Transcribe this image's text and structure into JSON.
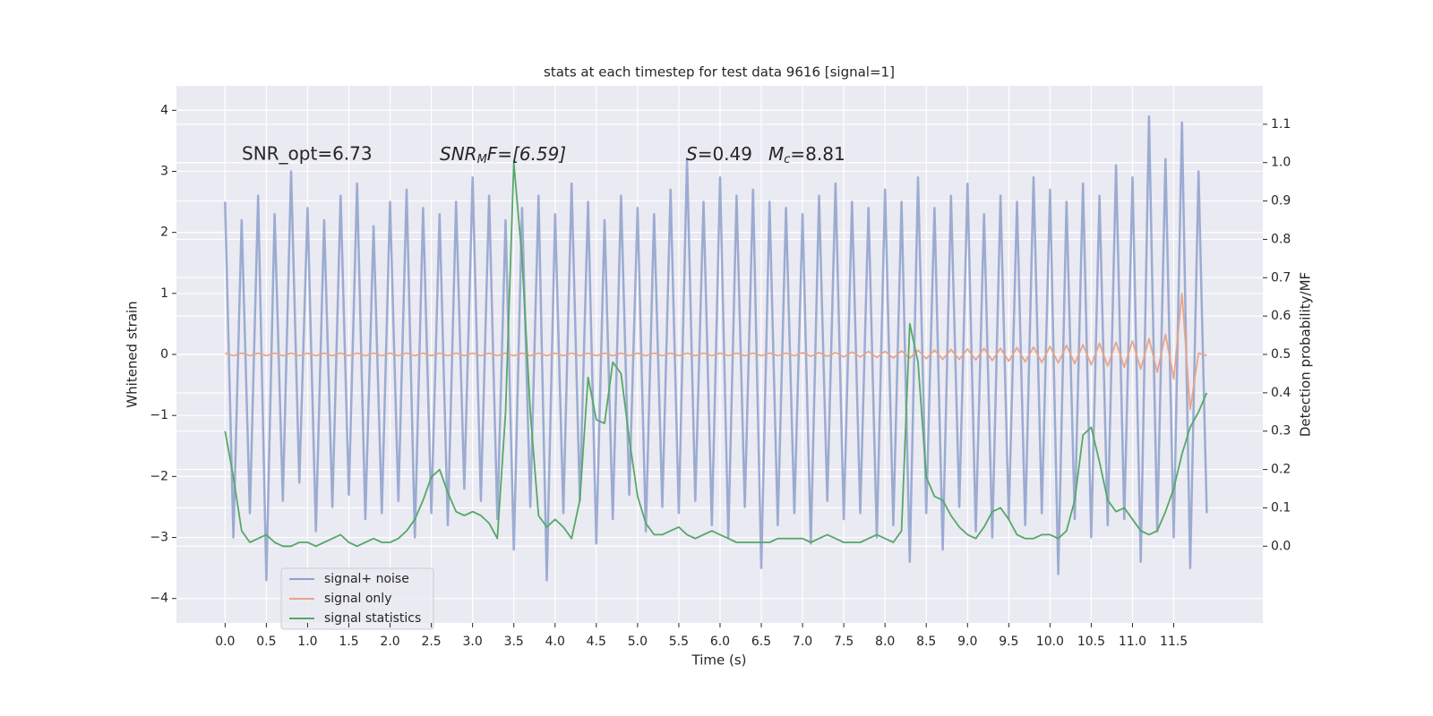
{
  "chart_data": {
    "type": "line",
    "title": "stats at each timestep for test data 9616 [signal=1]",
    "xlabel": "Time (s)",
    "ylabel": "Whitened strain",
    "y2label": "Detection probability/MF",
    "annotations": [
      "SNR_opt=6.73",
      [
        "SNR",
        "M",
        "F=[6.59]"
      ],
      [
        "S",
        "=0.49"
      ],
      [
        "M",
        "c",
        "=8.81"
      ]
    ],
    "xlim": [
      -0.59,
      12.58
    ],
    "ylim": [
      -4.4,
      4.4
    ],
    "y2lim": [
      -0.2,
      1.2
    ],
    "xticks": [
      {
        "value": 0,
        "label": "0.0"
      },
      0.5,
      {
        "value": 1,
        "label": "1.0"
      },
      1.5,
      {
        "value": 2,
        "label": "2.0"
      },
      2.5,
      {
        "value": 3,
        "label": "3.0"
      },
      3.5,
      {
        "value": 4,
        "label": "4.0"
      },
      4.5,
      {
        "value": 5,
        "label": "5.0"
      },
      5.5,
      {
        "value": 6,
        "label": "6.0"
      },
      6.5,
      {
        "value": 7,
        "label": "7.0"
      },
      7.5,
      {
        "value": 8,
        "label": "8.0"
      },
      8.5,
      {
        "value": 9,
        "label": "9.0"
      },
      9.5,
      {
        "value": 10,
        "label": "10.0"
      },
      10.5,
      {
        "value": 11,
        "label": "11.0"
      },
      11.5
    ],
    "yticks": [
      {
        "value": -4,
        "label": "−4"
      },
      {
        "value": -3,
        "label": "−3"
      },
      {
        "value": -2,
        "label": "−2"
      },
      {
        "value": -1,
        "label": "−1"
      },
      0,
      1,
      2,
      3,
      4
    ],
    "y2ticks": [
      {
        "value": 0,
        "label": "0.0"
      },
      0.1,
      0.2,
      0.3,
      0.4,
      0.5,
      0.6,
      0.7,
      0.8,
      0.9,
      {
        "value": 1,
        "label": "1.0"
      },
      1.1
    ],
    "grid": true,
    "legend": "lower left",
    "x": [
      0,
      0.1,
      0.2,
      0.3,
      0.4,
      0.5,
      0.6,
      0.7,
      0.8,
      0.9,
      1,
      1.1,
      1.2,
      1.3,
      1.4,
      1.5,
      1.6,
      1.7,
      1.8,
      1.9,
      2,
      2.1,
      2.2,
      2.3,
      2.4,
      2.5,
      2.6,
      2.7,
      2.8,
      2.9,
      3,
      3.1,
      3.2,
      3.3,
      3.4,
      3.5,
      3.6,
      3.7,
      3.8,
      3.9,
      4,
      4.1,
      4.2,
      4.3,
      4.4,
      4.5,
      4.6,
      4.7,
      4.8,
      4.9,
      5,
      5.1,
      5.2,
      5.3,
      5.4,
      5.5,
      5.6,
      5.7,
      5.8,
      5.9,
      6,
      6.1,
      6.2,
      6.3,
      6.4,
      6.5,
      6.6,
      6.7,
      6.8,
      6.9,
      7,
      7.1,
      7.2,
      7.3,
      7.4,
      7.5,
      7.6,
      7.7,
      7.8,
      7.9,
      8,
      8.1,
      8.2,
      8.3,
      8.4,
      8.5,
      8.6,
      8.7,
      8.8,
      8.9,
      9,
      9.1,
      9.2,
      9.3,
      9.4,
      9.5,
      9.6,
      9.7,
      9.8,
      9.9,
      10,
      10.1,
      10.2,
      10.3,
      10.4,
      10.5,
      10.6,
      10.7,
      10.8,
      10.9,
      11,
      11.1,
      11.2,
      11.3,
      11.4,
      11.5,
      11.6,
      11.7,
      11.8,
      11.9
    ],
    "series": [
      {
        "name": "signal+ noise",
        "color": "#8da0cb",
        "values": [
          2.5,
          -3.0,
          2.2,
          -2.6,
          2.6,
          -3.7,
          2.3,
          -2.4,
          3.0,
          -2.1,
          2.4,
          -2.9,
          2.2,
          -2.5,
          2.6,
          -2.3,
          2.8,
          -2.7,
          2.1,
          -2.6,
          2.5,
          -2.4,
          2.7,
          -3.0,
          2.4,
          -2.6,
          2.3,
          -2.8,
          2.5,
          -2.2,
          2.9,
          -2.4,
          2.6,
          -2.7,
          2.2,
          -3.2,
          2.4,
          -2.5,
          2.6,
          -3.7,
          2.3,
          -2.6,
          2.8,
          -2.4,
          2.5,
          -3.1,
          2.2,
          -2.7,
          2.6,
          -2.3,
          2.4,
          -2.9,
          2.3,
          -2.5,
          2.7,
          -2.6,
          3.2,
          -2.4,
          2.5,
          -2.8,
          2.9,
          -3.0,
          2.6,
          -2.5,
          2.7,
          -3.5,
          2.5,
          -2.8,
          2.4,
          -2.6,
          2.3,
          -3.1,
          2.6,
          -2.4,
          2.8,
          -2.7,
          2.5,
          -2.6,
          2.4,
          -3.0,
          2.7,
          -2.8,
          2.5,
          -3.4,
          2.9,
          -2.6,
          2.4,
          -3.2,
          2.6,
          -2.5,
          2.8,
          -2.9,
          2.3,
          -3.0,
          2.6,
          -2.7,
          2.5,
          -2.8,
          2.9,
          -2.6,
          2.7,
          -3.6,
          2.5,
          -2.7,
          2.8,
          -3.0,
          2.6,
          -2.8,
          3.1,
          -2.7,
          2.9,
          -3.4,
          3.9,
          -2.9,
          3.2,
          -3.0,
          3.8,
          -3.5,
          3.0,
          -2.6
        ]
      },
      {
        "name": "signal only",
        "color": "#e8a58c",
        "values": [
          0.02,
          -0.02,
          0.02,
          -0.02,
          0.02,
          -0.02,
          0.02,
          -0.02,
          0.02,
          -0.02,
          0.02,
          -0.02,
          0.02,
          -0.02,
          0.02,
          -0.02,
          0.02,
          -0.02,
          0.02,
          -0.02,
          0.02,
          -0.02,
          0.02,
          -0.02,
          0.02,
          -0.02,
          0.02,
          -0.02,
          0.02,
          -0.02,
          0.02,
          -0.02,
          0.02,
          -0.02,
          0.02,
          -0.02,
          0.02,
          -0.02,
          0.02,
          -0.02,
          0.02,
          -0.02,
          0.02,
          -0.02,
          0.02,
          -0.02,
          0.02,
          -0.02,
          0.02,
          -0.02,
          0.02,
          -0.02,
          0.02,
          -0.02,
          0.02,
          -0.02,
          0.02,
          -0.02,
          0.02,
          -0.02,
          0.02,
          -0.02,
          0.02,
          -0.02,
          0.02,
          -0.02,
          0.02,
          -0.02,
          0.02,
          -0.02,
          0.03,
          -0.03,
          0.03,
          -0.03,
          0.03,
          -0.04,
          0.04,
          -0.04,
          0.05,
          -0.05,
          0.05,
          -0.06,
          0.06,
          -0.06,
          0.07,
          -0.07,
          0.07,
          -0.08,
          0.08,
          -0.08,
          0.09,
          -0.09,
          0.1,
          -0.1,
          0.1,
          -0.11,
          0.11,
          -0.12,
          0.12,
          -0.13,
          0.13,
          -0.14,
          0.15,
          -0.15,
          0.16,
          -0.17,
          0.18,
          -0.19,
          0.2,
          -0.21,
          0.22,
          -0.24,
          0.26,
          -0.29,
          0.33,
          -0.4,
          1.0,
          -0.9,
          0.02,
          -0.02
        ]
      },
      {
        "name": "signal statistics",
        "color": "#55a868",
        "axis": "y2",
        "values": [
          0.3,
          0.18,
          0.04,
          0.01,
          0.02,
          0.03,
          0.01,
          0.0,
          0.0,
          0.01,
          0.01,
          0.0,
          0.01,
          0.02,
          0.03,
          0.01,
          0.0,
          0.01,
          0.02,
          0.01,
          0.01,
          0.02,
          0.04,
          0.07,
          0.12,
          0.18,
          0.2,
          0.14,
          0.09,
          0.08,
          0.09,
          0.08,
          0.06,
          0.02,
          0.35,
          1.0,
          0.75,
          0.35,
          0.08,
          0.05,
          0.07,
          0.05,
          0.02,
          0.12,
          0.44,
          0.33,
          0.32,
          0.48,
          0.45,
          0.28,
          0.13,
          0.06,
          0.03,
          0.03,
          0.04,
          0.05,
          0.03,
          0.02,
          0.03,
          0.04,
          0.03,
          0.02,
          0.01,
          0.01,
          0.01,
          0.01,
          0.01,
          0.02,
          0.02,
          0.02,
          0.02,
          0.01,
          0.02,
          0.03,
          0.02,
          0.01,
          0.01,
          0.01,
          0.02,
          0.03,
          0.02,
          0.01,
          0.04,
          0.58,
          0.48,
          0.18,
          0.13,
          0.12,
          0.08,
          0.05,
          0.03,
          0.02,
          0.05,
          0.09,
          0.1,
          0.07,
          0.03,
          0.02,
          0.02,
          0.03,
          0.03,
          0.02,
          0.04,
          0.12,
          0.29,
          0.31,
          0.22,
          0.12,
          0.09,
          0.1,
          0.07,
          0.04,
          0.03,
          0.04,
          0.09,
          0.15,
          0.24,
          0.31,
          0.35,
          0.4
        ]
      }
    ]
  }
}
